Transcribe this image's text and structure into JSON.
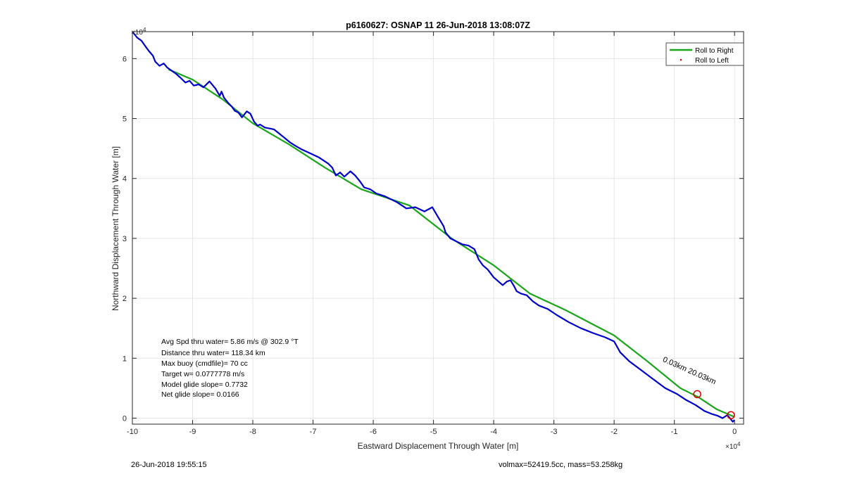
{
  "chart_data": {
    "type": "line",
    "title": "p6160627: OSNAP 11 26-Jun-2018 13:08:07Z",
    "xlabel": "Eastward Displacement Through Water [m]",
    "ylabel": "Northward Displacement Through Water [m]",
    "x_exponent_label": "×10",
    "x_exponent_power": "4",
    "y_exponent_label": "×10",
    "y_exponent_power": "4",
    "xlim": [
      -10,
      0.15
    ],
    "ylim": [
      -0.1,
      6.45
    ],
    "xticks": [
      -10,
      -9,
      -8,
      -7,
      -6,
      -5,
      -4,
      -3,
      -2,
      -1,
      0
    ],
    "yticks": [
      0,
      1,
      2,
      3,
      4,
      5,
      6
    ],
    "grid": true,
    "legend_position": "top-right",
    "legend": [
      {
        "label": "Roll to Right",
        "color": "#1aa61a",
        "style": "line"
      },
      {
        "label": "Roll to Left",
        "color": "#e00000",
        "style": "dot"
      }
    ],
    "series": [
      {
        "name": "Roll to Right",
        "color": "#1aa61a",
        "x": [
          -9.4,
          -9.0,
          -8.5,
          -8.0,
          -7.4,
          -6.8,
          -6.2,
          -5.4,
          -4.7,
          -4.0,
          -3.4,
          -2.8,
          -2.0,
          -1.45,
          -0.9,
          -0.6,
          -0.3,
          0.0
        ],
        "y": [
          5.82,
          5.65,
          5.32,
          4.92,
          4.57,
          4.18,
          3.82,
          3.55,
          3.0,
          2.55,
          2.08,
          1.8,
          1.38,
          0.95,
          0.5,
          0.35,
          0.15,
          0.02
        ]
      },
      {
        "name": "",
        "color": "#0000cc",
        "x": [
          -10.0,
          -9.92,
          -9.85,
          -9.78,
          -9.72,
          -9.66,
          -9.62,
          -9.55,
          -9.48,
          -9.42,
          -9.35,
          -9.28,
          -9.2,
          -9.12,
          -9.05,
          -8.98,
          -8.9,
          -8.82,
          -8.72,
          -8.62,
          -8.55,
          -8.52,
          -8.48,
          -8.44,
          -8.4,
          -8.35,
          -8.3,
          -8.24,
          -8.18,
          -8.1,
          -8.04,
          -7.98,
          -7.92,
          -7.88,
          -7.8,
          -7.65,
          -7.5,
          -7.38,
          -7.3,
          -7.18,
          -7.05,
          -6.9,
          -6.75,
          -6.68,
          -6.62,
          -6.55,
          -6.48,
          -6.38,
          -6.3,
          -6.22,
          -6.15,
          -6.05,
          -5.95,
          -5.8,
          -5.6,
          -5.45,
          -5.3,
          -5.15,
          -5.02,
          -4.92,
          -4.86,
          -4.83,
          -4.8,
          -4.72,
          -4.62,
          -4.52,
          -4.42,
          -4.32,
          -4.25,
          -4.18,
          -4.1,
          -4.0,
          -3.92,
          -3.85,
          -3.78,
          -3.72,
          -3.66,
          -3.62,
          -3.55,
          -3.45,
          -3.35,
          -3.25,
          -3.1,
          -2.95,
          -2.75,
          -2.55,
          -2.35,
          -2.15,
          -2.0,
          -1.9,
          -1.75,
          -1.55,
          -1.35,
          -1.15,
          -0.95,
          -0.8,
          -0.65,
          -0.5,
          -0.38,
          -0.28,
          -0.2,
          -0.12,
          -0.06,
          -0.03,
          0.0
        ],
        "y": [
          6.45,
          6.35,
          6.3,
          6.2,
          6.12,
          6.05,
          5.95,
          5.88,
          5.92,
          5.85,
          5.8,
          5.75,
          5.68,
          5.6,
          5.63,
          5.55,
          5.57,
          5.52,
          5.62,
          5.5,
          5.38,
          5.45,
          5.35,
          5.3,
          5.25,
          5.2,
          5.13,
          5.1,
          5.02,
          5.12,
          5.08,
          4.95,
          4.88,
          4.9,
          4.85,
          4.82,
          4.7,
          4.6,
          4.55,
          4.48,
          4.42,
          4.35,
          4.25,
          4.18,
          4.05,
          4.1,
          4.03,
          4.12,
          4.05,
          3.95,
          3.85,
          3.82,
          3.75,
          3.7,
          3.6,
          3.5,
          3.52,
          3.45,
          3.52,
          3.35,
          3.25,
          3.2,
          3.1,
          3.0,
          2.95,
          2.9,
          2.88,
          2.82,
          2.65,
          2.55,
          2.48,
          2.35,
          2.28,
          2.22,
          2.28,
          2.3,
          2.2,
          2.12,
          2.08,
          2.05,
          1.95,
          1.88,
          1.82,
          1.72,
          1.6,
          1.5,
          1.42,
          1.35,
          1.28,
          1.1,
          0.95,
          0.8,
          0.65,
          0.5,
          0.4,
          0.3,
          0.22,
          0.12,
          0.07,
          0.04,
          0.0,
          0.05,
          -0.02,
          -0.06,
          -0.03
        ]
      },
      {
        "name": "Roll to Left",
        "color": "#e00000",
        "type": "scatter",
        "x": [
          -0.62,
          -0.06
        ],
        "y": [
          0.4,
          0.05
        ]
      }
    ],
    "annotations": {
      "stats": [
        "Avg Spd thru water=  5.86 m/s @ 302.9 °T",
        "Distance thru water= 118.34 km",
        "Max buoy (cmdfile)= 70 cc",
        "Target w= 0.0777778 m/s",
        "Model glide slope= 0.7732",
        "Net glide slope= 0.0166"
      ],
      "waypoint_label": "0.03km   20.03km",
      "waypoint_label_x": -1.2,
      "waypoint_label_y": 0.95,
      "waypoint_label_angle": 24
    }
  },
  "footer": {
    "left": "26-Jun-2018 19:55:15",
    "right": "volmax=52419.5cc, mass=53.258kg"
  }
}
